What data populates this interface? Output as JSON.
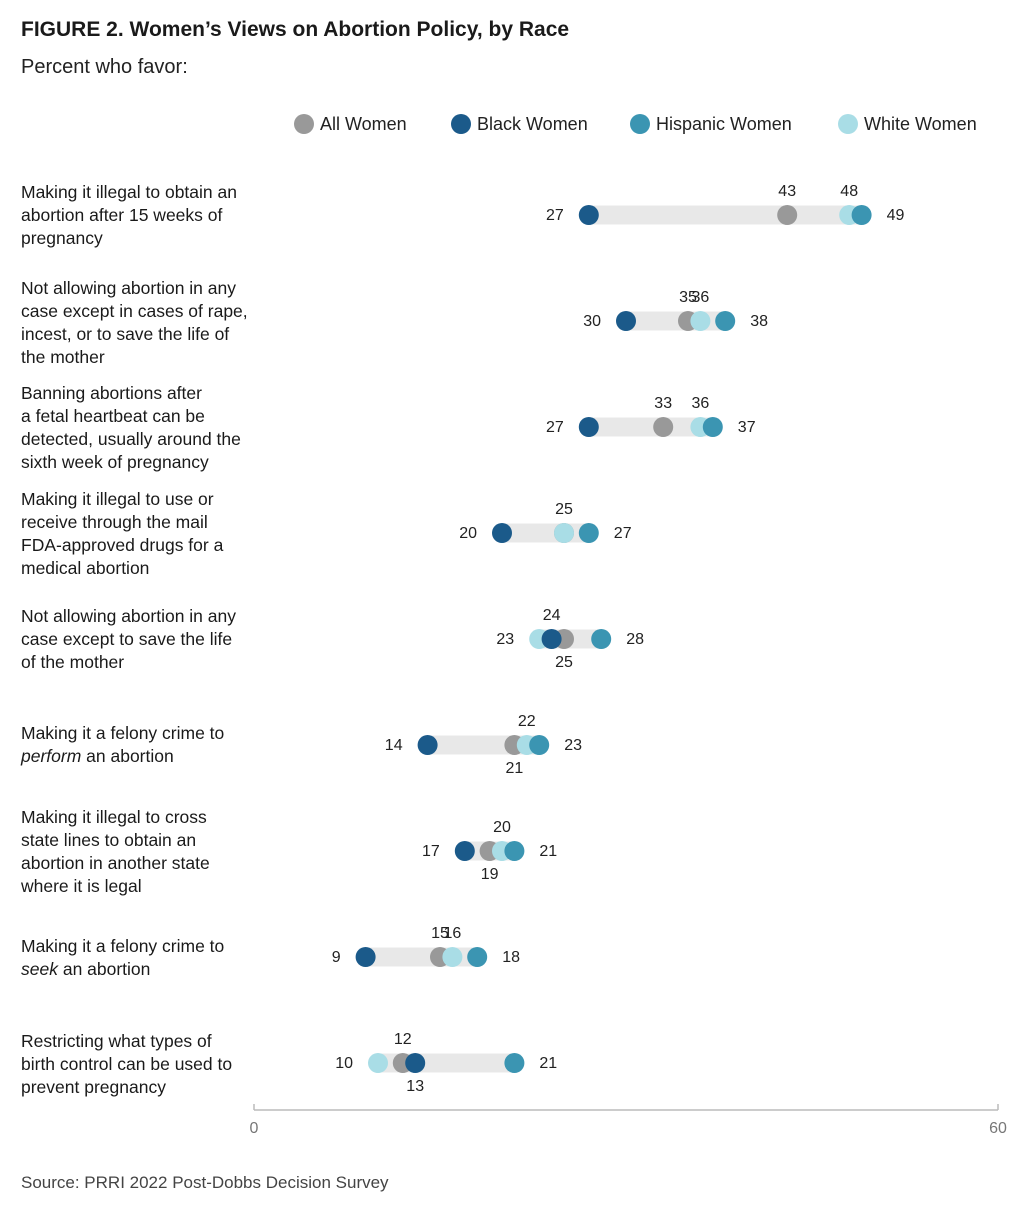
{
  "header": {
    "title": "FIGURE 2.  Women’s Views on Abortion Policy, by Race",
    "subtitle": "Percent who favor:"
  },
  "footer": {
    "source": "Source:  PRRI 2022 Post-Dobbs Decision Survey"
  },
  "colors": {
    "All Women": "#999999",
    "Black Women": "#1b5a8a",
    "Hispanic Women": "#3b95b2",
    "White Women": "#a9dde6",
    "range_bar": "#e8e8e8",
    "axis": "#bbbbbb"
  },
  "row_labels": [
    [
      "Making it illegal to obtain an",
      "abortion after 15 weeks of",
      "pregnancy"
    ],
    [
      "Not allowing abortion in any",
      "case except in cases of rape,",
      "incest, or to save the life of",
      "the mother"
    ],
    [
      "Banning abortions after",
      "a fetal heartbeat can be",
      "detected, usually around the",
      "sixth week of pregnancy"
    ],
    [
      "Making it illegal to use or",
      "receive through the mail",
      "FDA-approved drugs for a",
      "medical abortion"
    ],
    [
      "Not allowing abortion in any",
      "case except to save the life",
      "of the mother"
    ],
    [
      "Making it a felony crime to",
      "<i>perform</i> an abortion"
    ],
    [
      "Making it illegal to cross",
      "state lines to obtain an",
      "abortion in another state",
      "where it is legal"
    ],
    [
      "Making it a felony crime to",
      "<i>seek</i> an abortion"
    ],
    [
      "Restricting what types of",
      "birth control can be used to",
      "prevent pregnancy"
    ]
  ],
  "chart_data": {
    "type": "dot",
    "title": "FIGURE 2.  Women’s Views on Abortion Policy, by Race",
    "subtitle": "Percent who favor:",
    "xlim": [
      0,
      60
    ],
    "x_ticks": [
      "0",
      "60"
    ],
    "legend_position": "top",
    "series": [
      {
        "name": "All Women",
        "values": [
          43,
          35,
          33,
          25,
          25,
          21,
          19,
          15,
          12
        ]
      },
      {
        "name": "Black Women",
        "values": [
          27,
          30,
          27,
          20,
          24,
          14,
          17,
          9,
          13
        ]
      },
      {
        "name": "Hispanic Women",
        "values": [
          49,
          38,
          37,
          27,
          28,
          23,
          21,
          18,
          21
        ]
      },
      {
        "name": "White Women",
        "values": [
          48,
          36,
          36,
          25,
          23,
          22,
          20,
          16,
          10
        ]
      }
    ],
    "categories": [
      "Making it illegal to obtain an abortion after 15 weeks of pregnancy",
      "Not allowing abortion in any case except in cases of rape, incest, or to save the life of the mother",
      "Banning abortions after a fetal heartbeat can be detected, usually around the sixth week of pregnancy",
      "Making it illegal to use or receive through the mail FDA-approved drugs for a medical abortion",
      "Not allowing abortion in any case except to save the life of the mother",
      "Making it a felony crime to perform an abortion",
      "Making it illegal to cross state lines to obtain an abortion in another state where it is legal",
      "Making it a felony crime to seek an abortion",
      "Restricting what types of birth control can be used to prevent pregnancy"
    ],
    "data_labels": [
      [
        {
          "text": "27",
          "side": "left"
        },
        {
          "text": "43",
          "side": "above",
          "series": 0
        },
        {
          "text": "48",
          "side": "above",
          "series": 3
        },
        {
          "text": "49",
          "side": "right"
        }
      ],
      [
        {
          "text": "30",
          "side": "left"
        },
        {
          "text": "35",
          "side": "above",
          "series": 0
        },
        {
          "text": "36",
          "side": "above",
          "series": 3
        },
        {
          "text": "38",
          "side": "right"
        }
      ],
      [
        {
          "text": "27",
          "side": "left"
        },
        {
          "text": "33",
          "side": "above",
          "series": 0
        },
        {
          "text": "36",
          "side": "above",
          "series": 3
        },
        {
          "text": "37",
          "side": "right"
        }
      ],
      [
        {
          "text": "20",
          "side": "left"
        },
        {
          "text": "25",
          "side": "above",
          "series": 0
        },
        {
          "text": "27",
          "side": "right"
        }
      ],
      [
        {
          "text": "23",
          "side": "left"
        },
        {
          "text": "24",
          "side": "above",
          "series": 1
        },
        {
          "text": "25",
          "side": "below",
          "series": 0
        },
        {
          "text": "28",
          "side": "right"
        }
      ],
      [
        {
          "text": "14",
          "side": "left"
        },
        {
          "text": "22",
          "side": "above",
          "series": 3
        },
        {
          "text": "21",
          "side": "below",
          "series": 0
        },
        {
          "text": "23",
          "side": "right"
        }
      ],
      [
        {
          "text": "17",
          "side": "left"
        },
        {
          "text": "20",
          "side": "above",
          "series": 3
        },
        {
          "text": "19",
          "side": "below",
          "series": 0
        },
        {
          "text": "21",
          "side": "right"
        }
      ],
      [
        {
          "text": "9",
          "side": "left"
        },
        {
          "text": "15",
          "side": "above",
          "series": 0
        },
        {
          "text": "16",
          "side": "above",
          "series": 3
        },
        {
          "text": "18",
          "side": "right"
        }
      ],
      [
        {
          "text": "10",
          "side": "left"
        },
        {
          "text": "12",
          "side": "above",
          "series": 0
        },
        {
          "text": "13",
          "side": "below",
          "series": 1
        },
        {
          "text": "21",
          "side": "right"
        }
      ]
    ]
  }
}
